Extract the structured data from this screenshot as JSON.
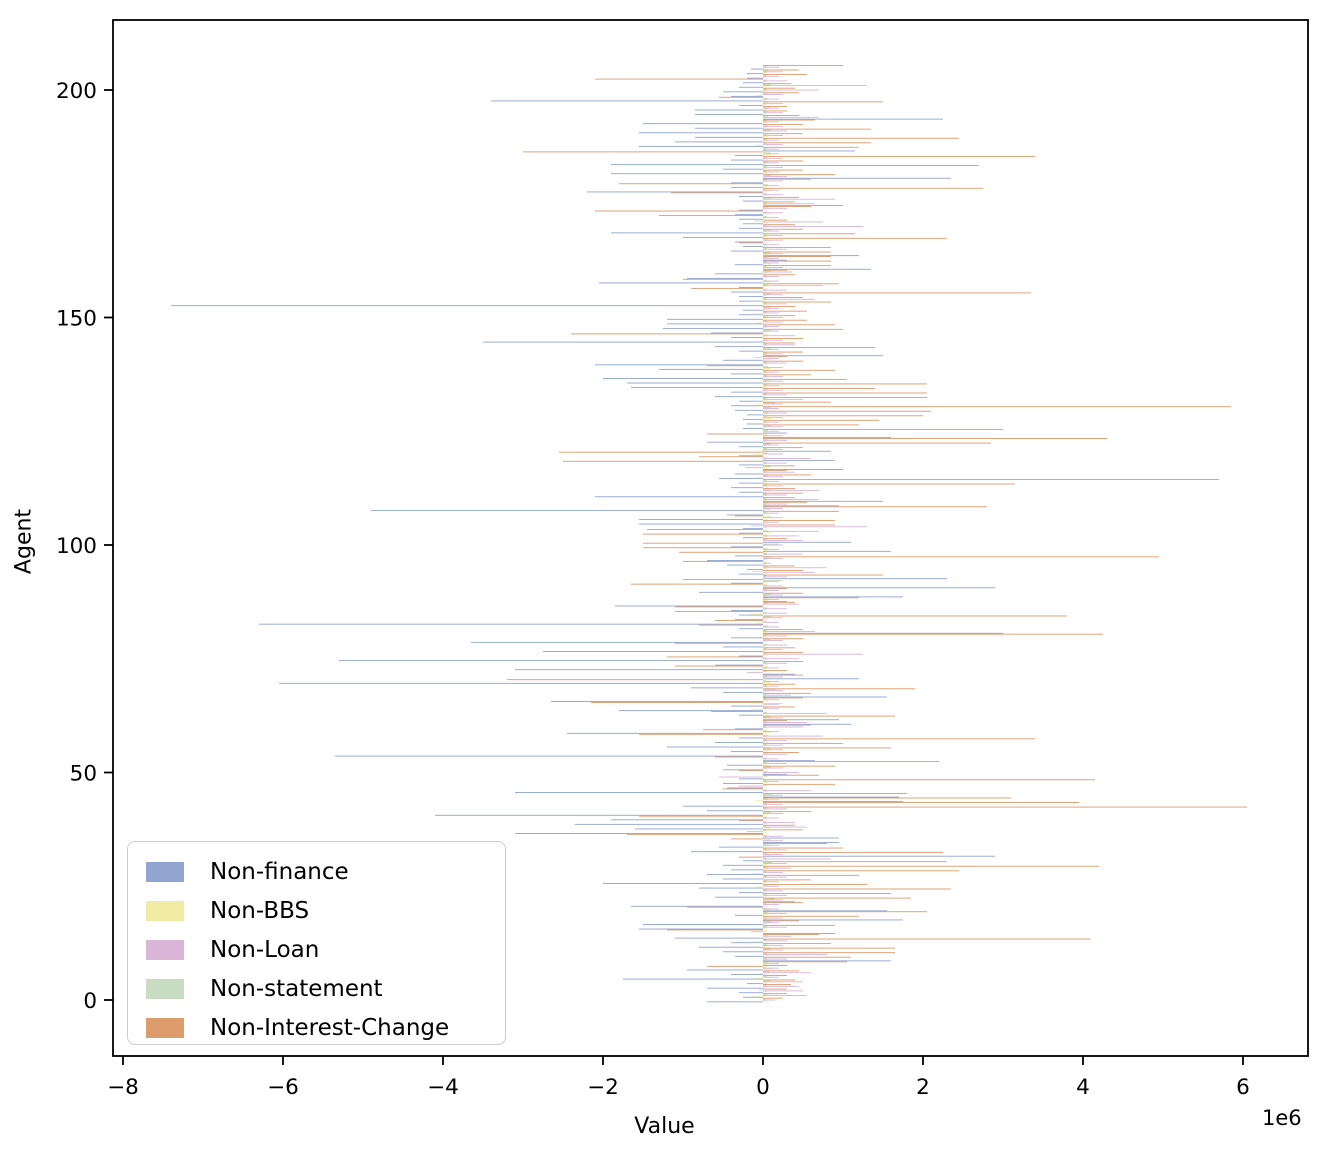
{
  "chart_data": {
    "type": "bar",
    "orientation": "horizontal",
    "title": "",
    "xlabel": "Value",
    "ylabel": "Agent",
    "x_offset_label": "1e6",
    "value_scale": 1000000,
    "xlim": [
      -8.125,
      6.81
    ],
    "ylim": [
      -13.5,
      215.5
    ],
    "grid": false,
    "legend_position": "lower left",
    "xticks": [
      {
        "v": -8,
        "label": "−8"
      },
      {
        "v": -6,
        "label": "−6"
      },
      {
        "v": -4,
        "label": "−4"
      },
      {
        "v": -2,
        "label": "−2"
      },
      {
        "v": 0,
        "label": "0"
      },
      {
        "v": 2,
        "label": "2"
      },
      {
        "v": 4,
        "label": "4"
      },
      {
        "v": 6,
        "label": "6"
      }
    ],
    "yticks": [
      {
        "v": 0,
        "label": "0"
      },
      {
        "v": 50,
        "label": "50"
      },
      {
        "v": 100,
        "label": "100"
      },
      {
        "v": 150,
        "label": "150"
      },
      {
        "v": 200,
        "label": "200"
      }
    ],
    "series": [
      {
        "name": "Non-finance",
        "color": "#92a5d1"
      },
      {
        "name": "Non-BBS",
        "color": "#f0eba4"
      },
      {
        "name": "Non-Loan",
        "color": "#d9b5d7"
      },
      {
        "name": "Non-statement",
        "color": "#c7dcc0"
      },
      {
        "name": "Non-Interest-Change",
        "color": "#dd9c6c"
      }
    ],
    "rows_note": "one row per agent 0..205; values in 1e6 units, order: [Non-finance, Non-BBS, Non-Loan, Non-statement, Non-Interest-Change]",
    "rows": [
      [
        -0.7,
        0.05,
        0.15,
        0.03,
        0.25
      ],
      [
        -0.25,
        -0.08,
        0.55,
        0.05,
        0.3
      ],
      [
        -0.3,
        0.05,
        0.5,
        -0.05,
        0.3
      ],
      [
        -0.7,
        0.04,
        0.45,
        0.05,
        0.35
      ],
      [
        -0.2,
        0.06,
        0.5,
        0.1,
        0.4
      ],
      [
        -1.75,
        -0.1,
        0.2,
        0.05,
        0.3
      ],
      [
        -0.4,
        0.05,
        0.6,
        0.08,
        0.45
      ],
      [
        -0.95,
        0.1,
        0.2,
        0.04,
        -0.7
      ],
      [
        0.3,
        0.05,
        0.2,
        0.06,
        1.05
      ],
      [
        1.6,
        0.05,
        0.3,
        0.05,
        1.1
      ],
      [
        -0.35,
        0.06,
        0.8,
        0.05,
        1.65
      ],
      [
        -0.5,
        0.04,
        0.25,
        0.1,
        1.65
      ],
      [
        -0.8,
        0.05,
        0.25,
        0.05,
        0.85
      ],
      [
        -0.4,
        -0.15,
        0.3,
        0.05,
        4.1
      ],
      [
        -1.1,
        0.05,
        0.35,
        0.06,
        0.7
      ],
      [
        0.9,
        0.04,
        -0.15,
        0.05,
        -1.2
      ],
      [
        -1.55,
        0.05,
        0.3,
        0.05,
        0.9
      ],
      [
        -1.5,
        0.04,
        0.2,
        0.1,
        0.45
      ],
      [
        1.75,
        0.05,
        0.25,
        0.05,
        1.2
      ],
      [
        -0.35,
        0.05,
        0.3,
        0.06,
        2.05
      ],
      [
        1.55,
        0.1,
        0.2,
        0.05,
        -0.95
      ],
      [
        -1.65,
        0.05,
        0.2,
        0.04,
        0.5
      ],
      [
        0.4,
        0.05,
        0.25,
        0.15,
        1.85
      ],
      [
        -0.6,
        0.04,
        0.3,
        0.05,
        1.6
      ],
      [
        -0.3,
        0.05,
        0.25,
        0.05,
        2.35
      ],
      [
        -0.8,
        -0.1,
        0.2,
        0.06,
        1.3
      ],
      [
        -2.0,
        0.05,
        0.2,
        0.05,
        0.6
      ],
      [
        -0.5,
        0.04,
        0.3,
        0.05,
        1.2
      ],
      [
        -0.7,
        -0.15,
        0.25,
        0.05,
        2.45
      ],
      [
        -0.4,
        0.05,
        0.35,
        0.06,
        4.2
      ],
      [
        -0.5,
        0.05,
        0.3,
        0.12,
        2.3
      ],
      [
        -0.25,
        0.04,
        0.85,
        0.05,
        -0.3
      ],
      [
        2.9,
        0.1,
        0.25,
        0.05,
        2.25
      ],
      [
        -0.9,
        0.05,
        0.3,
        0.05,
        1.0
      ],
      [
        -0.55,
        0.04,
        0.2,
        0.06,
        0.8
      ],
      [
        0.95,
        0.05,
        0.25,
        0.1,
        -0.4
      ],
      [
        0.95,
        0.05,
        0.25,
        0.05,
        -1.7
      ],
      [
        -3.1,
        0.04,
        -0.2,
        0.05,
        0.5
      ],
      [
        -1.6,
        0.1,
        0.55,
        0.05,
        0.4
      ],
      [
        -2.35,
        0.05,
        0.4,
        0.04,
        -0.3
      ],
      [
        -1.9,
        0.05,
        0.2,
        0.05,
        -1.55
      ],
      [
        -4.1,
        0.05,
        0.25,
        0.1,
        0.6
      ],
      [
        -0.7,
        0.04,
        0.3,
        0.05,
        6.05
      ],
      [
        -1.0,
        0.05,
        0.25,
        0.05,
        3.95
      ],
      [
        1.75,
        -0.1,
        0.2,
        0.06,
        3.1
      ],
      [
        1.7,
        0.05,
        0.25,
        0.12,
        1.8
      ],
      [
        -3.1,
        0.05,
        0.6,
        0.05,
        -0.5
      ],
      [
        -0.45,
        0.04,
        -0.3,
        0.05,
        0.9
      ],
      [
        -0.5,
        0.05,
        0.2,
        0.05,
        4.15
      ],
      [
        -0.3,
        0.05,
        -0.55,
        0.06,
        0.7
      ],
      [
        0.3,
        0.04,
        0.45,
        0.05,
        -0.3
      ],
      [
        -0.5,
        0.05,
        0.25,
        0.1,
        0.9
      ],
      [
        -0.45,
        0.05,
        0.3,
        0.05,
        2.2
      ],
      [
        0.65,
        0.04,
        0.2,
        0.05,
        -0.6
      ],
      [
        -5.35,
        0.05,
        0.3,
        0.06,
        0.45
      ],
      [
        -0.4,
        0.05,
        0.25,
        0.1,
        1.6
      ],
      [
        -1.2,
        0.04,
        0.25,
        0.05,
        1.0
      ],
      [
        -0.6,
        0.05,
        0.3,
        0.05,
        3.4
      ],
      [
        -0.3,
        0.05,
        0.75,
        0.06,
        -1.55
      ],
      [
        -2.45,
        0.1,
        0.2,
        0.05,
        -0.75
      ],
      [
        -0.35,
        0.05,
        0.5,
        0.04,
        0.6
      ],
      [
        1.1,
        0.05,
        0.55,
        0.05,
        0.3
      ],
      [
        0.95,
        0.04,
        0.25,
        0.1,
        1.65
      ],
      [
        -0.3,
        0.05,
        0.8,
        0.05,
        -0.65
      ],
      [
        -1.8,
        -0.15,
        0.2,
        0.06,
        0.4
      ],
      [
        -0.4,
        0.05,
        0.2,
        0.25,
        -2.15
      ],
      [
        -2.65,
        0.05,
        0.2,
        0.05,
        0.5
      ],
      [
        1.55,
        0.04,
        0.35,
        0.05,
        0.6
      ],
      [
        -0.5,
        0.05,
        0.25,
        0.15,
        1.9
      ],
      [
        -0.9,
        0.05,
        0.2,
        0.05,
        0.4
      ],
      [
        -6.05,
        0.1,
        0.2,
        0.04,
        -3.2
      ],
      [
        1.2,
        0.05,
        0.25,
        0.05,
        0.5
      ],
      [
        0.4,
        0.12,
        -0.2,
        0.05,
        0.3
      ],
      [
        -3.1,
        0.05,
        0.2,
        0.06,
        -1.1
      ],
      [
        -0.6,
        0.04,
        0.3,
        0.05,
        0.5
      ],
      [
        -5.3,
        0.05,
        0.45,
        0.05,
        -1.2
      ],
      [
        -0.3,
        0.05,
        1.25,
        0.06,
        0.5
      ],
      [
        -2.75,
        0.04,
        0.25,
        0.05,
        0.4
      ],
      [
        -0.5,
        0.05,
        0.3,
        0.05,
        -1.1
      ],
      [
        -3.65,
        0.05,
        0.25,
        0.1,
        0.5
      ],
      [
        -0.4,
        0.04,
        0.3,
        0.05,
        4.25
      ],
      [
        3.0,
        0.05,
        0.65,
        0.05,
        0.5
      ],
      [
        -0.3,
        0.05,
        0.2,
        0.06,
        -0.8
      ],
      [
        -6.3,
        -0.1,
        0.2,
        0.05,
        -0.6
      ],
      [
        -0.35,
        0.05,
        0.25,
        0.1,
        3.8
      ],
      [
        -0.3,
        -0.15,
        0.3,
        0.05,
        -1.1
      ],
      [
        -0.4,
        0.05,
        0.3,
        0.05,
        -1.1
      ],
      [
        -1.85,
        0.04,
        0.45,
        0.06,
        0.4
      ],
      [
        0.3,
        0.05,
        0.2,
        0.05,
        1.2
      ],
      [
        1.75,
        0.05,
        0.25,
        0.1,
        0.5
      ],
      [
        -0.8,
        0.04,
        0.2,
        0.05,
        0.3
      ],
      [
        2.9,
        0.05,
        0.25,
        0.05,
        -1.65
      ],
      [
        -0.4,
        0.05,
        0.2,
        0.25,
        -1.0
      ],
      [
        2.3,
        0.04,
        0.3,
        0.05,
        1.5
      ],
      [
        -0.3,
        0.05,
        0.65,
        -0.13,
        0.5
      ],
      [
        -0.2,
        0.05,
        0.8,
        0.06,
        0.4
      ],
      [
        -0.45,
        0.04,
        0.1,
        0.05,
        -1.0
      ],
      [
        -0.7,
        0.05,
        0.25,
        0.1,
        4.95
      ],
      [
        -0.35,
        0.05,
        0.5,
        0.05,
        -1.05
      ],
      [
        1.6,
        0.05,
        0.2,
        0.06,
        -1.5
      ],
      [
        -0.4,
        0.04,
        0.25,
        0.2,
        -1.5
      ],
      [
        1.1,
        0.05,
        0.5,
        0.05,
        0.3
      ],
      [
        -0.25,
        0.05,
        0.45,
        0.05,
        -1.5
      ],
      [
        -0.3,
        0.1,
        0.7,
        0.05,
        -1.45
      ],
      [
        -0.25,
        0.05,
        1.3,
        -0.15,
        0.9
      ],
      [
        -1.55,
        0.04,
        0.2,
        0.05,
        0.9
      ],
      [
        -1.55,
        0.05,
        0.25,
        0.1,
        -0.35
      ],
      [
        -0.45,
        0.05,
        0.2,
        0.05,
        0.95
      ],
      [
        -4.9,
        0.1,
        0.25,
        0.05,
        2.8
      ],
      [
        0.95,
        0.05,
        0.3,
        0.06,
        0.55
      ],
      [
        1.5,
        0.04,
        0.7,
        0.05,
        0.4
      ],
      [
        -2.1,
        0.05,
        0.3,
        0.05,
        0.5
      ],
      [
        -0.3,
        0.05,
        0.7,
        0.1,
        0.4
      ],
      [
        -0.4,
        0.04,
        0.25,
        0.05,
        3.15
      ],
      [
        -0.3,
        0.05,
        0.2,
        0.05,
        5.7
      ],
      [
        -0.55,
        -0.1,
        0.25,
        0.06,
        0.6
      ],
      [
        -0.35,
        0.05,
        0.4,
        0.05,
        0.3
      ],
      [
        1.0,
        0.05,
        -0.22,
        0.1,
        0.4
      ],
      [
        -0.3,
        0.04,
        0.3,
        0.05,
        -2.5
      ],
      [
        0.9,
        0.05,
        0.6,
        0.05,
        -0.8
      ],
      [
        -0.3,
        -0.12,
        0.25,
        0.06,
        -2.55
      ],
      [
        0.85,
        0.05,
        0.25,
        0.05,
        0.5
      ],
      [
        -0.3,
        0.04,
        0.2,
        0.1,
        2.85
      ],
      [
        -0.7,
        0.05,
        0.3,
        0.05,
        4.3
      ],
      [
        1.6,
        0.05,
        0.25,
        0.05,
        -0.7
      ],
      [
        0.3,
        0.05,
        0.2,
        0.06,
        3.0
      ],
      [
        -0.25,
        0.04,
        0.25,
        0.1,
        1.2
      ],
      [
        -0.2,
        0.05,
        0.2,
        0.05,
        1.45
      ],
      [
        -0.25,
        0.1,
        0.25,
        0.05,
        2.0
      ],
      [
        -0.2,
        0.05,
        0.3,
        0.06,
        2.1
      ],
      [
        -0.35,
        0.05,
        0.2,
        0.1,
        5.85
      ],
      [
        -0.4,
        -0.1,
        0.25,
        0.15,
        0.85
      ],
      [
        -0.3,
        0.05,
        0.5,
        0.05,
        2.05
      ],
      [
        -0.6,
        0.04,
        0.3,
        0.05,
        2.05
      ],
      [
        -0.4,
        0.05,
        0.25,
        0.06,
        1.4
      ],
      [
        -1.65,
        0.05,
        0.2,
        0.05,
        2.05
      ],
      [
        -1.7,
        0.04,
        0.25,
        0.1,
        1.05
      ],
      [
        -2.0,
        0.05,
        0.25,
        0.05,
        0.6
      ],
      [
        -0.4,
        0.05,
        0.2,
        0.05,
        0.9
      ],
      [
        -1.3,
        0.1,
        0.25,
        0.06,
        -0.7
      ],
      [
        -2.1,
        0.05,
        0.3,
        0.05,
        0.5
      ],
      [
        -0.5,
        0.1,
        0.2,
        -0.12,
        0.3
      ],
      [
        1.5,
        0.05,
        0.25,
        0.05,
        0.5
      ],
      [
        -0.3,
        0.04,
        0.2,
        0.1,
        1.4
      ],
      [
        -0.6,
        0.05,
        0.4,
        0.05,
        0.4
      ],
      [
        -3.5,
        0.05,
        0.25,
        0.05,
        0.5
      ],
      [
        -0.4,
        0.04,
        0.4,
        0.06,
        -2.4
      ],
      [
        -0.65,
        0.05,
        0.2,
        0.1,
        1.0
      ],
      [
        -1.25,
        0.05,
        0.2,
        0.05,
        0.9
      ],
      [
        -1.2,
        -0.1,
        0.25,
        0.05,
        0.55
      ],
      [
        -1.2,
        0.05,
        0.25,
        0.06,
        0.4
      ],
      [
        -0.3,
        -0.12,
        0.2,
        0.05,
        0.55
      ],
      [
        -0.25,
        0.05,
        0.2,
        0.1,
        0.4
      ],
      [
        -7.4,
        0.05,
        0.3,
        0.05,
        0.85
      ],
      [
        -0.3,
        0.04,
        0.65,
        0.05,
        0.5
      ],
      [
        -0.3,
        0.05,
        0.25,
        0.1,
        3.35
      ],
      [
        -0.4,
        0.05,
        0.3,
        0.05,
        -0.9
      ],
      [
        -0.3,
        0.04,
        0.75,
        0.06,
        0.95
      ],
      [
        -2.05,
        0.1,
        0.2,
        0.05,
        -1.0
      ],
      [
        -0.95,
        0.05,
        0.2,
        0.05,
        0.4
      ],
      [
        -0.6,
        0.05,
        0.36,
        0.1,
        0.3
      ],
      [
        1.35,
        0.04,
        0.25,
        0.05,
        0.85
      ],
      [
        -0.35,
        0.1,
        0.2,
        0.05,
        0.85
      ],
      [
        0.3,
        0.05,
        0.2,
        0.06,
        0.85
      ],
      [
        1.2,
        0.05,
        0.25,
        0.1,
        0.85
      ],
      [
        -0.4,
        0.04,
        0.3,
        0.05,
        0.85
      ],
      [
        -0.25,
        0.05,
        0.2,
        0.05,
        -0.3
      ],
      [
        -0.35,
        0.1,
        0.25,
        0.06,
        2.3
      ],
      [
        -1.0,
        0.05,
        0.25,
        0.05,
        1.15
      ],
      [
        -1.9,
        0.04,
        0.2,
        0.1,
        0.5
      ],
      [
        -0.3,
        0.05,
        1.25,
        0.05,
        0.4
      ],
      [
        -0.25,
        0.05,
        0.75,
        -0.1,
        0.3
      ],
      [
        -0.3,
        0.04,
        0.2,
        0.05,
        -1.3
      ],
      [
        -0.35,
        0.1,
        0.25,
        0.05,
        -2.1
      ],
      [
        -0.3,
        0.05,
        0.3,
        0.06,
        0.6
      ],
      [
        1.0,
        0.05,
        0.65,
        0.05,
        0.4
      ],
      [
        -0.25,
        0.04,
        0.9,
        0.1,
        0.45
      ],
      [
        -0.3,
        0.05,
        0.25,
        0.05,
        -1.15
      ],
      [
        -2.2,
        0.1,
        0.2,
        0.05,
        2.75
      ],
      [
        -0.4,
        0.05,
        0.2,
        0.06,
        -1.8
      ],
      [
        -0.4,
        0.04,
        0.25,
        0.05,
        0.6
      ],
      [
        2.35,
        0.05,
        0.3,
        0.1,
        0.9
      ],
      [
        -1.9,
        0.05,
        0.2,
        0.05,
        0.5
      ],
      [
        -0.5,
        0.04,
        0.25,
        0.05,
        2.7
      ],
      [
        -1.9,
        0.05,
        0.2,
        0.06,
        0.5
      ],
      [
        -0.4,
        0.05,
        0.25,
        0.05,
        3.4
      ],
      [
        -0.35,
        0.1,
        0.2,
        0.1,
        -3.0
      ],
      [
        1.15,
        0.05,
        0.2,
        0.05,
        1.2
      ],
      [
        -1.55,
        -0.1,
        0.25,
        0.05,
        1.35
      ],
      [
        -1.1,
        0.05,
        0.2,
        0.06,
        2.45
      ],
      [
        -0.85,
        0.05,
        0.25,
        0.05,
        0.5
      ],
      [
        -1.55,
        0.04,
        0.3,
        0.1,
        1.35
      ],
      [
        -0.85,
        0.05,
        0.25,
        0.05,
        0.5
      ],
      [
        -1.5,
        0.05,
        0.2,
        0.05,
        0.65
      ],
      [
        2.25,
        0.04,
        0.7,
        0.06,
        0.45
      ],
      [
        -0.85,
        0.05,
        0.25,
        0.05,
        0.3
      ],
      [
        -0.85,
        0.05,
        0.2,
        0.1,
        0.3
      ],
      [
        -0.3,
        0.04,
        0.25,
        0.05,
        1.5
      ],
      [
        -3.4,
        0.05,
        0.2,
        0.05,
        -0.55
      ],
      [
        -0.4,
        -0.1,
        0.25,
        0.06,
        0.45
      ],
      [
        -0.5,
        0.05,
        0.7,
        0.05,
        0.4
      ],
      [
        -0.3,
        0.05,
        1.3,
        0.1,
        0.35
      ],
      [
        -0.25,
        0.04,
        0.3,
        0.05,
        -2.1
      ],
      [
        -0.2,
        0.05,
        0.2,
        0.05,
        0.55
      ],
      [
        -0.2,
        0.05,
        0.25,
        0.06,
        0.45
      ],
      [
        -0.15,
        0.04,
        0.2,
        0.05,
        1.0
      ]
    ]
  }
}
